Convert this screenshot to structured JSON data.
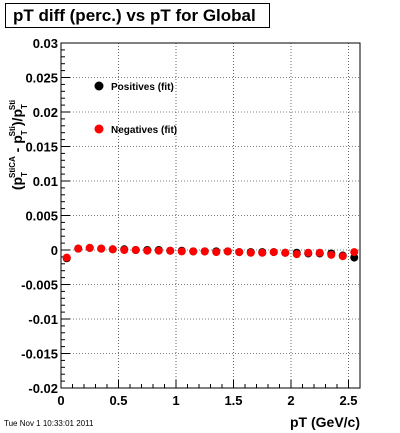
{
  "footer": {
    "timestamp": "Tue Nov  1 10:33:01 2011"
  },
  "chart_data": {
    "type": "scatter",
    "title": "pT diff (perc.) vs pT for Global",
    "xlabel": "pT (GeV/c)",
    "ylabel": "(p_T^StiCA - p_T^Sti)/p_T^Sti",
    "ylabel_parts": {
      "open": "(p",
      "sub1": "T",
      "sup1": "StiCA",
      "minus": " - p",
      "sub2": "T",
      "sup2": "Sti",
      "close": ")/p",
      "sub3": "T",
      "sup3": "Sti"
    },
    "xlim": [
      0,
      2.6
    ],
    "ylim": [
      -0.02,
      0.03
    ],
    "grid": true,
    "legend_position": "upper-left inside plot",
    "x_ticks": [
      0,
      0.5,
      1,
      1.5,
      2,
      2.5
    ],
    "x_tick_labels": [
      "0",
      "0.5",
      "1",
      "1.5",
      "2",
      "2.5"
    ],
    "y_ticks": [
      -0.02,
      -0.015,
      -0.01,
      -0.005,
      0,
      0.005,
      0.01,
      0.015,
      0.02,
      0.025,
      0.03
    ],
    "y_tick_labels": [
      "-0.02",
      "-0.015",
      "-0.01",
      "-0.005",
      "0",
      "0.005",
      "0.01",
      "0.015",
      "0.02",
      "0.025",
      "0.03"
    ],
    "series": [
      {
        "name": "Positives (fit)",
        "color": "#000000",
        "x": [
          0.05,
          0.15,
          0.25,
          0.35,
          0.45,
          0.55,
          0.65,
          0.75,
          0.85,
          0.95,
          1.05,
          1.15,
          1.25,
          1.35,
          1.45,
          1.55,
          1.65,
          1.75,
          1.85,
          1.95,
          2.05,
          2.15,
          2.25,
          2.35,
          2.45,
          2.55
        ],
        "y": [
          -0.0012,
          0.0002,
          0.0003,
          0.0002,
          0.0001,
          0.0001,
          0.0,
          0.0,
          0.0,
          -0.0001,
          -0.0001,
          -0.0002,
          -0.0002,
          -0.0002,
          -0.0002,
          -0.0003,
          -0.0003,
          -0.0003,
          -0.0003,
          -0.0004,
          -0.0004,
          -0.0005,
          -0.0005,
          -0.0005,
          -0.0008,
          -0.0011
        ]
      },
      {
        "name": "Negatives (fit)",
        "color": "#ff0000",
        "x": [
          0.05,
          0.15,
          0.25,
          0.35,
          0.45,
          0.55,
          0.65,
          0.75,
          0.85,
          0.95,
          1.05,
          1.15,
          1.25,
          1.35,
          1.45,
          1.55,
          1.65,
          1.75,
          1.85,
          1.95,
          2.05,
          2.15,
          2.25,
          2.35,
          2.45,
          2.55
        ],
        "y": [
          -0.0011,
          0.0002,
          0.0003,
          0.0002,
          0.0001,
          0.0,
          0.0,
          -0.0001,
          -0.0001,
          -0.0001,
          -0.0002,
          -0.0002,
          -0.0002,
          -0.0003,
          -0.0002,
          -0.0003,
          -0.0004,
          -0.0004,
          -0.0003,
          -0.0004,
          -0.0006,
          -0.0004,
          -0.0004,
          -0.0007,
          -0.0009,
          -0.0003
        ]
      }
    ]
  }
}
